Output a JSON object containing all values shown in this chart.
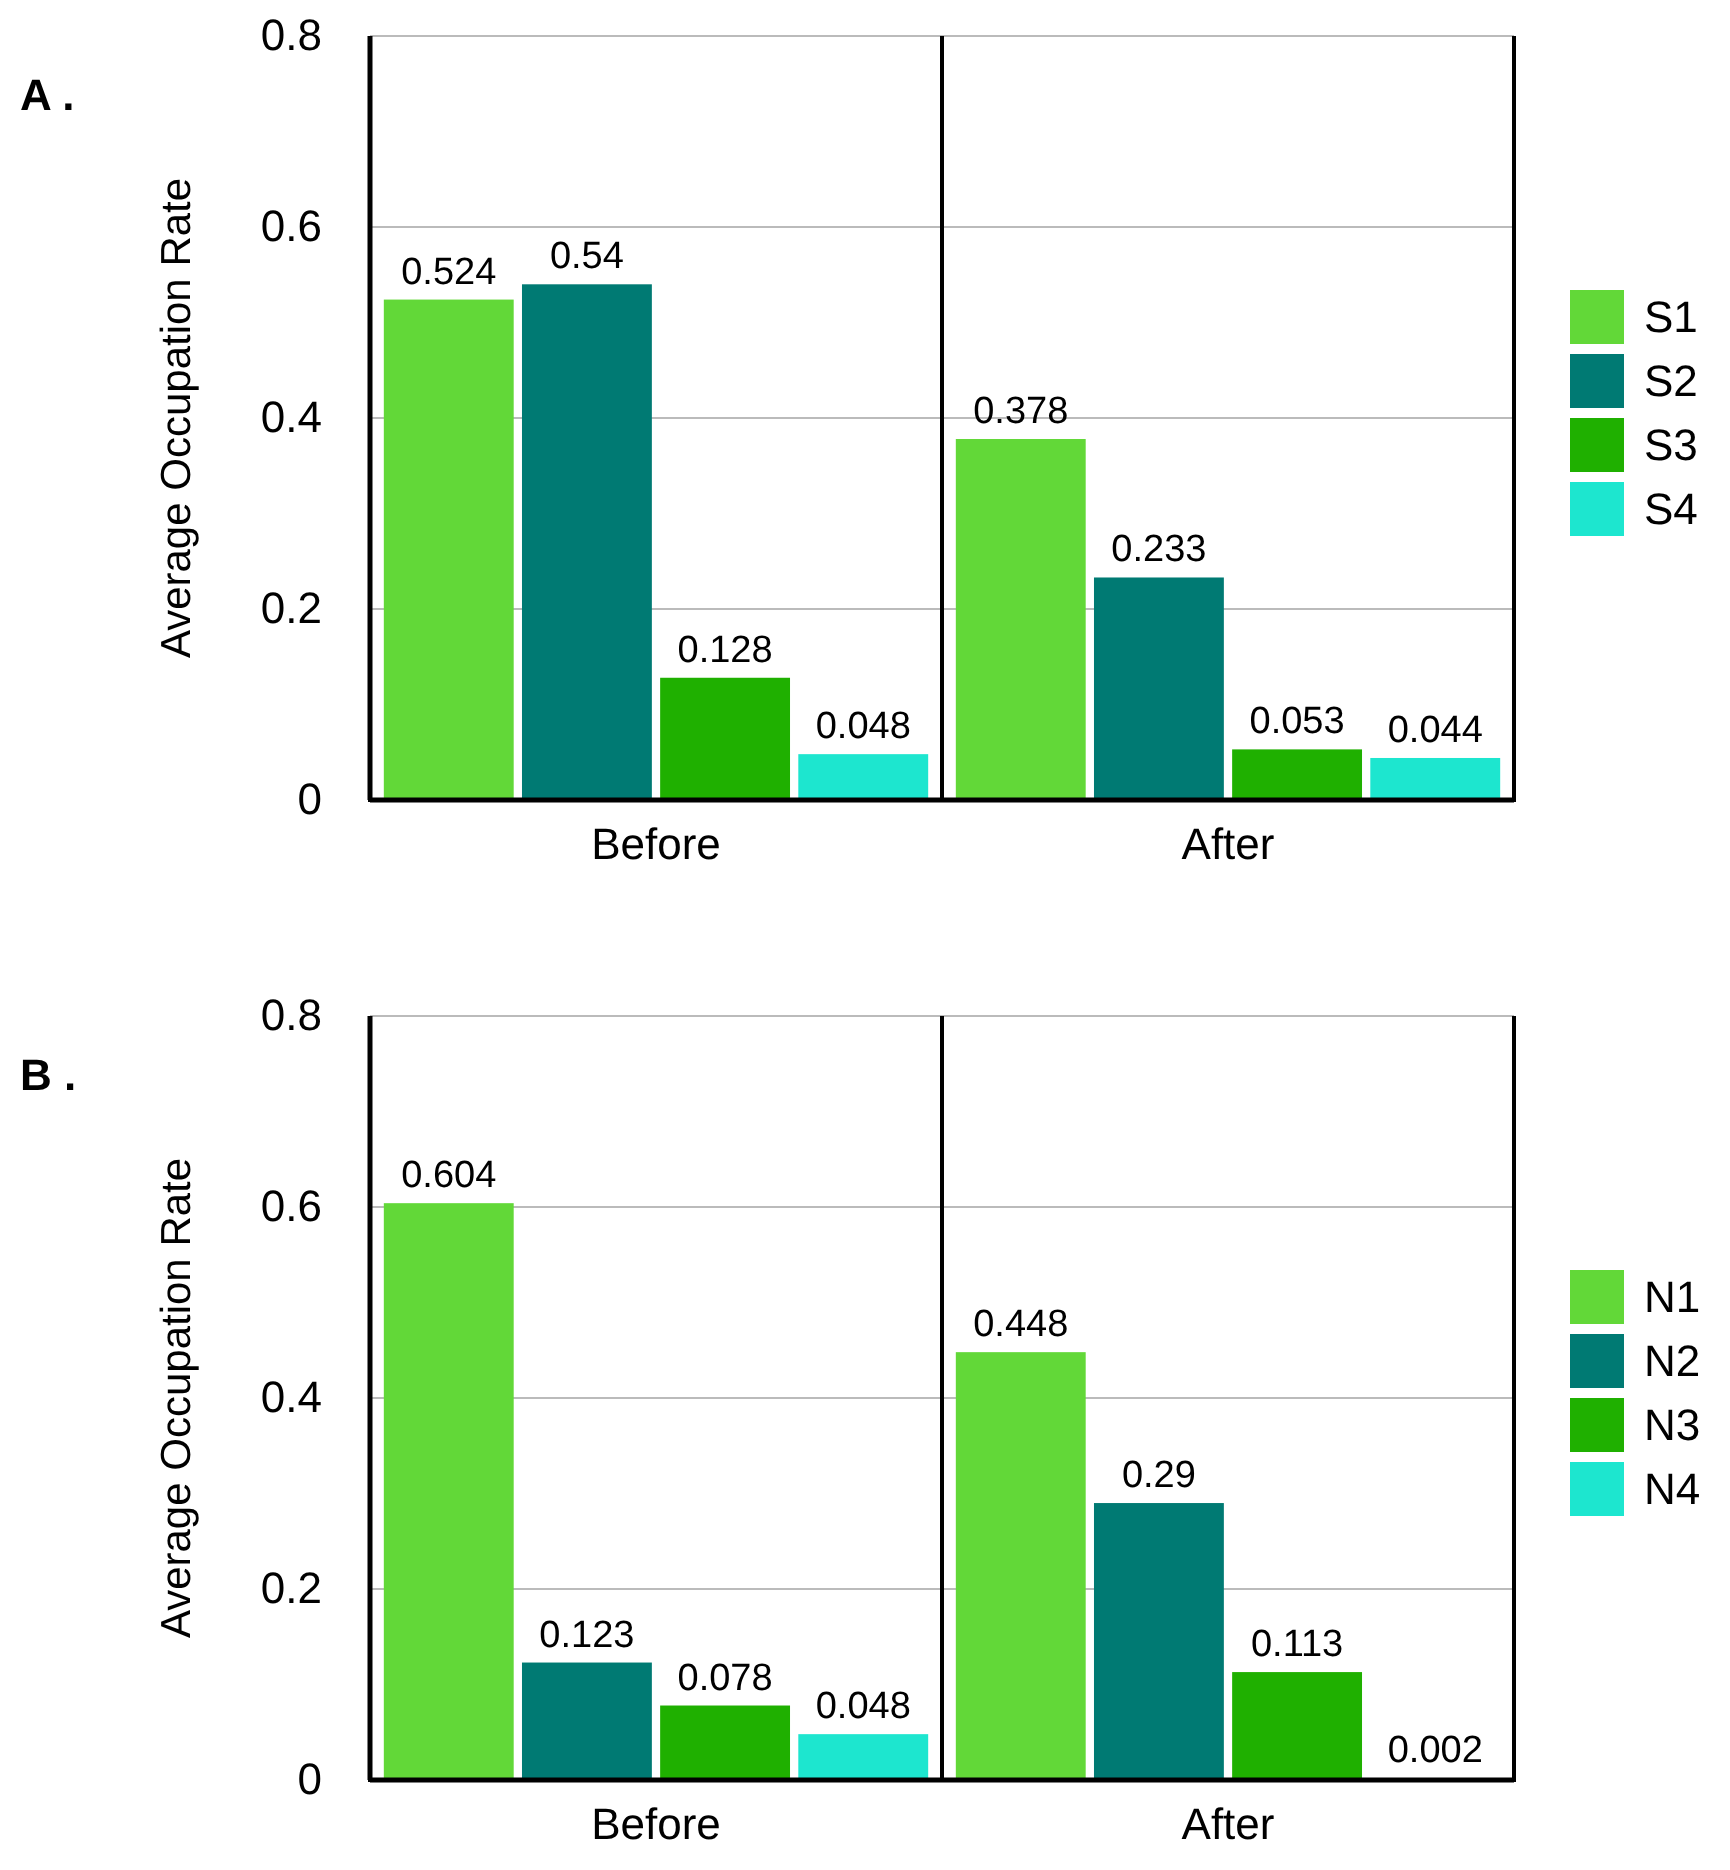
{
  "chart_data": [
    {
      "type": "bar",
      "annotations": [
        "A ."
      ],
      "ylabel": "Average Occupation Rate",
      "categories": [
        "Before",
        "After"
      ],
      "series": [
        {
          "name": "S1",
          "color": "#62d838",
          "values": [
            0.524,
            0.378
          ]
        },
        {
          "name": "S2",
          "color": "#007a73",
          "values": [
            0.54,
            0.233
          ]
        },
        {
          "name": "S3",
          "color": "#1fb000",
          "values": [
            0.128,
            0.053
          ]
        },
        {
          "name": "S4",
          "color": "#1de6cf",
          "values": [
            0.048,
            0.044
          ]
        }
      ],
      "ylim": [
        0,
        0.8
      ],
      "yticks": [
        0,
        0.2,
        0.4,
        0.6,
        0.8
      ],
      "grid": "y",
      "legend": "right",
      "data_labels": true
    },
    {
      "type": "bar",
      "annotations": [
        "B ."
      ],
      "ylabel": "Average Occupation Rate",
      "categories": [
        "Before",
        "After"
      ],
      "series": [
        {
          "name": "N1",
          "color": "#62d838",
          "values": [
            0.604,
            0.448
          ]
        },
        {
          "name": "N2",
          "color": "#007a73",
          "values": [
            0.123,
            0.29
          ]
        },
        {
          "name": "N3",
          "color": "#1fb000",
          "values": [
            0.078,
            0.113
          ]
        },
        {
          "name": "N4",
          "color": "#1de6cf",
          "values": [
            0.048,
            0.002
          ]
        }
      ],
      "ylim": [
        0,
        0.8
      ],
      "yticks": [
        0,
        0.2,
        0.4,
        0.6,
        0.8
      ],
      "grid": "y",
      "legend": "right",
      "data_labels": true
    }
  ]
}
